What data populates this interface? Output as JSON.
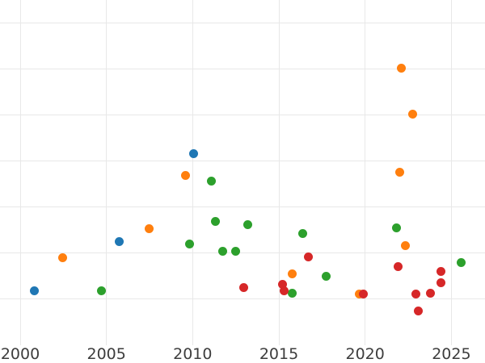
{
  "chart": {
    "title": "",
    "x_tick_labels": [
      "2000",
      "2005",
      "2010",
      "2015",
      "2020",
      "2025"
    ]
  },
  "chart_data": {
    "type": "scatter",
    "title": "",
    "xlabel": "",
    "ylabel": "",
    "x_ticks": [
      2000,
      2005,
      2010,
      2015,
      2020,
      2025
    ],
    "xlim": [
      1998.83,
      2026.95
    ],
    "ylim": [
      0,
      7.5
    ],
    "y_gridline_units": [
      1,
      2,
      3,
      4,
      5,
      6,
      7
    ],
    "grid": true,
    "legend": false,
    "note": "y-axis tick labels are not visible in the image (cropped at left edge); y values are expressed in gridline units counted up from the bottom of the plot",
    "colors": {
      "grid": "#e8e8e8",
      "tick_label": "#3d3d3d",
      "background": "#ffffff"
    },
    "series": [
      {
        "name": "blue",
        "color": "#1f77b4",
        "points": [
          [
            2000.84,
            1.17
          ],
          [
            2005.75,
            2.25
          ],
          [
            2010.03,
            4.15
          ]
        ]
      },
      {
        "name": "orange",
        "color": "#ff7f0e",
        "points": [
          [
            2002.47,
            1.9
          ],
          [
            2007.49,
            2.53
          ],
          [
            2009.58,
            3.68
          ],
          [
            2015.75,
            1.54
          ],
          [
            2019.64,
            1.1
          ],
          [
            2022.0,
            3.75
          ],
          [
            2022.11,
            6.01
          ],
          [
            2022.33,
            2.16
          ],
          [
            2022.77,
            5.02
          ]
        ]
      },
      {
        "name": "green",
        "color": "#2ca02c",
        "points": [
          [
            2004.72,
            1.17
          ],
          [
            2009.8,
            2.2
          ],
          [
            2011.1,
            3.57
          ],
          [
            2011.33,
            2.68
          ],
          [
            2011.72,
            2.03
          ],
          [
            2012.5,
            2.03
          ],
          [
            2013.21,
            2.61
          ],
          [
            2015.78,
            1.13
          ],
          [
            2016.39,
            2.42
          ],
          [
            2017.72,
            1.49
          ],
          [
            2021.8,
            2.55
          ],
          [
            2025.55,
            1.79
          ]
        ]
      },
      {
        "name": "red",
        "color": "#d62728",
        "points": [
          [
            2012.94,
            1.24
          ],
          [
            2015.22,
            1.31
          ],
          [
            2015.28,
            1.17
          ],
          [
            2016.72,
            1.91
          ],
          [
            2019.9,
            1.1
          ],
          [
            2021.91,
            1.71
          ],
          [
            2022.92,
            1.1
          ],
          [
            2023.1,
            0.73
          ],
          [
            2023.8,
            1.12
          ],
          [
            2024.39,
            1.6
          ],
          [
            2024.39,
            1.35
          ]
        ]
      }
    ]
  }
}
